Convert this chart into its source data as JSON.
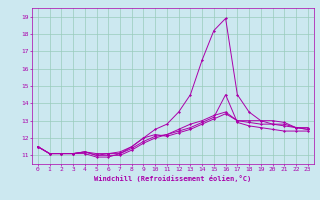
{
  "xlabel": "Windchill (Refroidissement éolien,°C)",
  "xlim": [
    -0.5,
    23.5
  ],
  "ylim": [
    10.5,
    19.5
  ],
  "yticks": [
    11,
    12,
    13,
    14,
    15,
    16,
    17,
    18,
    19
  ],
  "xticks": [
    0,
    1,
    2,
    3,
    4,
    5,
    6,
    7,
    8,
    9,
    10,
    11,
    12,
    13,
    14,
    15,
    16,
    17,
    18,
    19,
    20,
    21,
    22,
    23
  ],
  "bg_color": "#cce8f0",
  "line_color": "#aa00aa",
  "grid_color": "#99ccbb",
  "curves": [
    [
      11.5,
      11.1,
      11.1,
      11.1,
      11.1,
      10.9,
      10.9,
      11.1,
      11.5,
      12.0,
      12.2,
      12.1,
      12.3,
      12.5,
      12.8,
      13.1,
      13.4,
      13.0,
      13.0,
      13.0,
      13.0,
      12.9,
      12.6,
      12.6
    ],
    [
      11.5,
      11.1,
      11.1,
      11.1,
      11.2,
      11.0,
      11.0,
      11.0,
      11.3,
      11.7,
      12.0,
      12.2,
      12.4,
      12.6,
      12.9,
      13.2,
      14.5,
      12.9,
      12.7,
      12.6,
      12.5,
      12.4,
      12.4,
      12.4
    ],
    [
      11.5,
      11.1,
      11.1,
      11.1,
      11.2,
      11.1,
      11.1,
      11.2,
      11.5,
      12.0,
      12.5,
      12.8,
      13.5,
      14.5,
      16.5,
      18.2,
      18.9,
      14.5,
      13.5,
      13.0,
      12.8,
      12.8,
      12.6,
      12.5
    ],
    [
      11.5,
      11.1,
      11.1,
      11.1,
      11.2,
      11.0,
      11.1,
      11.1,
      11.4,
      11.8,
      12.1,
      12.2,
      12.5,
      12.8,
      13.0,
      13.3,
      13.5,
      13.0,
      12.9,
      12.8,
      12.8,
      12.7,
      12.6,
      12.5
    ]
  ]
}
